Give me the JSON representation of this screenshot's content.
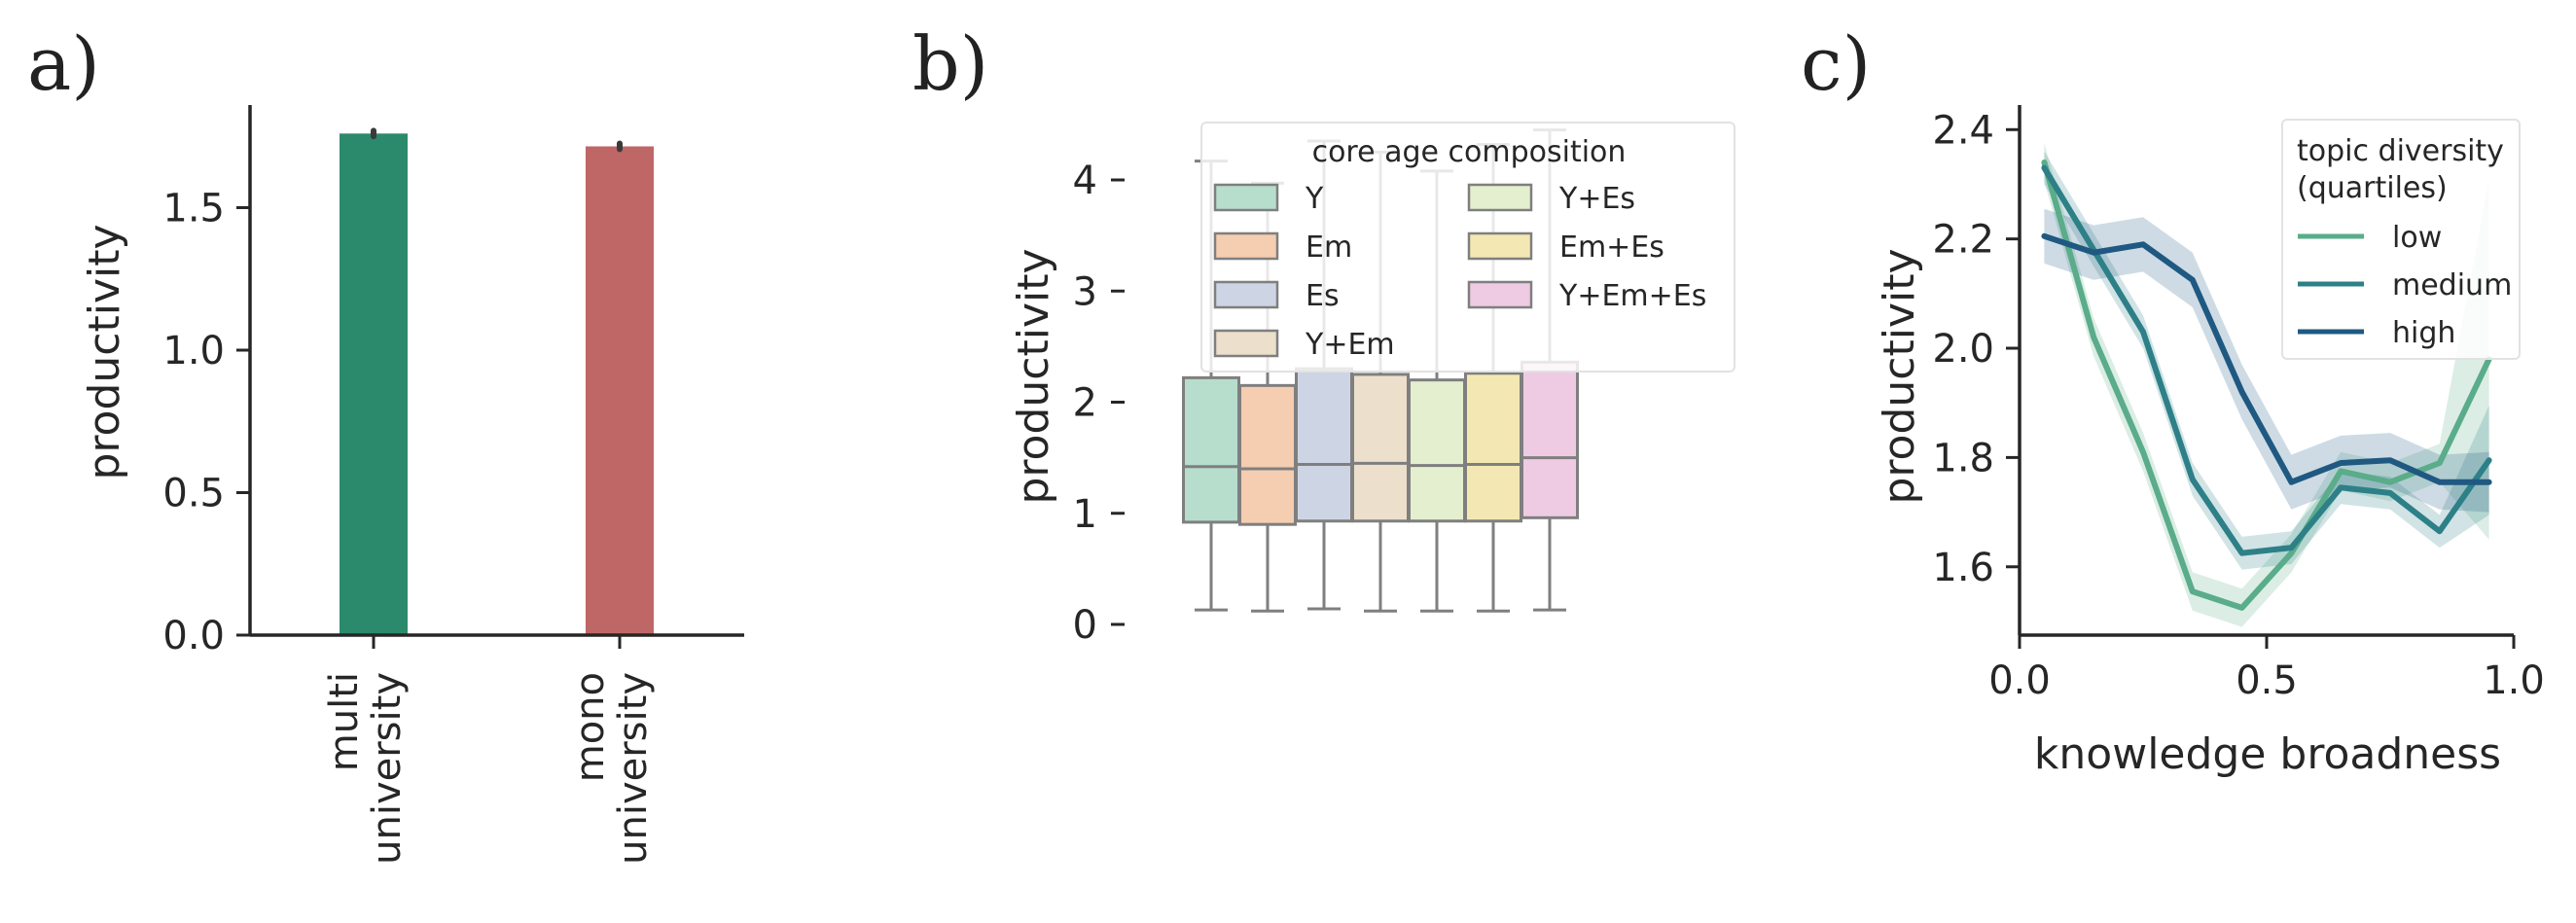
{
  "chart_data": [
    {
      "panel": "a)",
      "type": "bar",
      "categories": [
        [
          "multi",
          "university"
        ],
        [
          "mono",
          "university"
        ]
      ],
      "values": [
        1.76,
        1.715
      ],
      "error": [
        0.01,
        0.01
      ],
      "colors": [
        "#2b8a6b",
        "#bf6666"
      ],
      "ylabel": "productivity",
      "ylim": [
        0,
        1.86
      ],
      "yticks": [
        "0.0",
        "0.5",
        "1.0",
        "1.5"
      ],
      "grid": false
    },
    {
      "panel": "b)",
      "type": "box",
      "categories": [
        "Y",
        "Em",
        "Es",
        "Y+Em",
        "Y+Es",
        "Em+Es",
        "Y+Em+Es"
      ],
      "colors": [
        "#b7ddcd",
        "#f5cdb0",
        "#cdd5e4",
        "#ecdfcb",
        "#e4efcf",
        "#f3e8b3",
        "#eecbe2"
      ],
      "boxes": [
        {
          "whislo": 0.13,
          "q1": 0.92,
          "med": 1.42,
          "q3": 2.22,
          "whishi": 4.17
        },
        {
          "whislo": 0.12,
          "q1": 0.9,
          "med": 1.4,
          "q3": 2.15,
          "whishi": 3.97
        },
        {
          "whislo": 0.14,
          "q1": 0.93,
          "med": 1.44,
          "q3": 2.3,
          "whishi": 4.35
        },
        {
          "whislo": 0.12,
          "q1": 0.93,
          "med": 1.45,
          "q3": 2.25,
          "whishi": 4.25
        },
        {
          "whislo": 0.12,
          "q1": 0.93,
          "med": 1.43,
          "q3": 2.2,
          "whishi": 4.08
        },
        {
          "whislo": 0.12,
          "q1": 0.93,
          "med": 1.44,
          "q3": 2.26,
          "whishi": 4.32
        },
        {
          "whislo": 0.13,
          "q1": 0.96,
          "med": 1.5,
          "q3": 2.36,
          "whishi": 4.45
        }
      ],
      "ylabel": "productivity",
      "ylim": [
        -0.1,
        4.62
      ],
      "yticks": [
        "0",
        "1",
        "2",
        "3",
        "4"
      ],
      "legend": {
        "title": "core age composition",
        "location": "upper right",
        "entries": [
          "Y",
          "Em",
          "Es",
          "Y+Em",
          "Y+Es",
          "Em+Es",
          "Y+Em+Es"
        ]
      }
    },
    {
      "panel": "c)",
      "type": "line",
      "xlabel": "knowledge broadness",
      "ylabel": "productivity",
      "xlim": [
        0,
        1
      ],
      "ylim": [
        1.475,
        2.445
      ],
      "xticks": [
        "0.0",
        "0.5",
        "1.0"
      ],
      "yticks": [
        "1.6",
        "1.8",
        "2.0",
        "2.2",
        "2.4"
      ],
      "x": [
        0.05,
        0.15,
        0.25,
        0.35,
        0.45,
        0.55,
        0.65,
        0.75,
        0.85,
        0.95
      ],
      "series": [
        {
          "name": "low",
          "color": "#5aac8a",
          "values": [
            2.34,
            2.02,
            1.81,
            1.555,
            1.525,
            1.625,
            1.775,
            1.755,
            1.79,
            1.98
          ],
          "ci": 0.035,
          "ci_last": 0.33
        },
        {
          "name": "medium",
          "color": "#2d8087",
          "values": [
            2.33,
            2.18,
            2.03,
            1.76,
            1.625,
            1.635,
            1.745,
            1.735,
            1.665,
            1.795
          ],
          "ci": 0.03,
          "ci_last": 0.1
        },
        {
          "name": "high",
          "color": "#1f5982",
          "values": [
            2.205,
            2.175,
            2.19,
            2.125,
            1.92,
            1.755,
            1.79,
            1.795,
            1.755,
            1.755
          ],
          "ci": 0.05,
          "ci_last": 0.055
        }
      ],
      "legend": {
        "title": [
          "topic diversity",
          "(quartiles)"
        ],
        "location": "upper right",
        "entries": [
          "low",
          "medium",
          "high"
        ]
      }
    }
  ]
}
